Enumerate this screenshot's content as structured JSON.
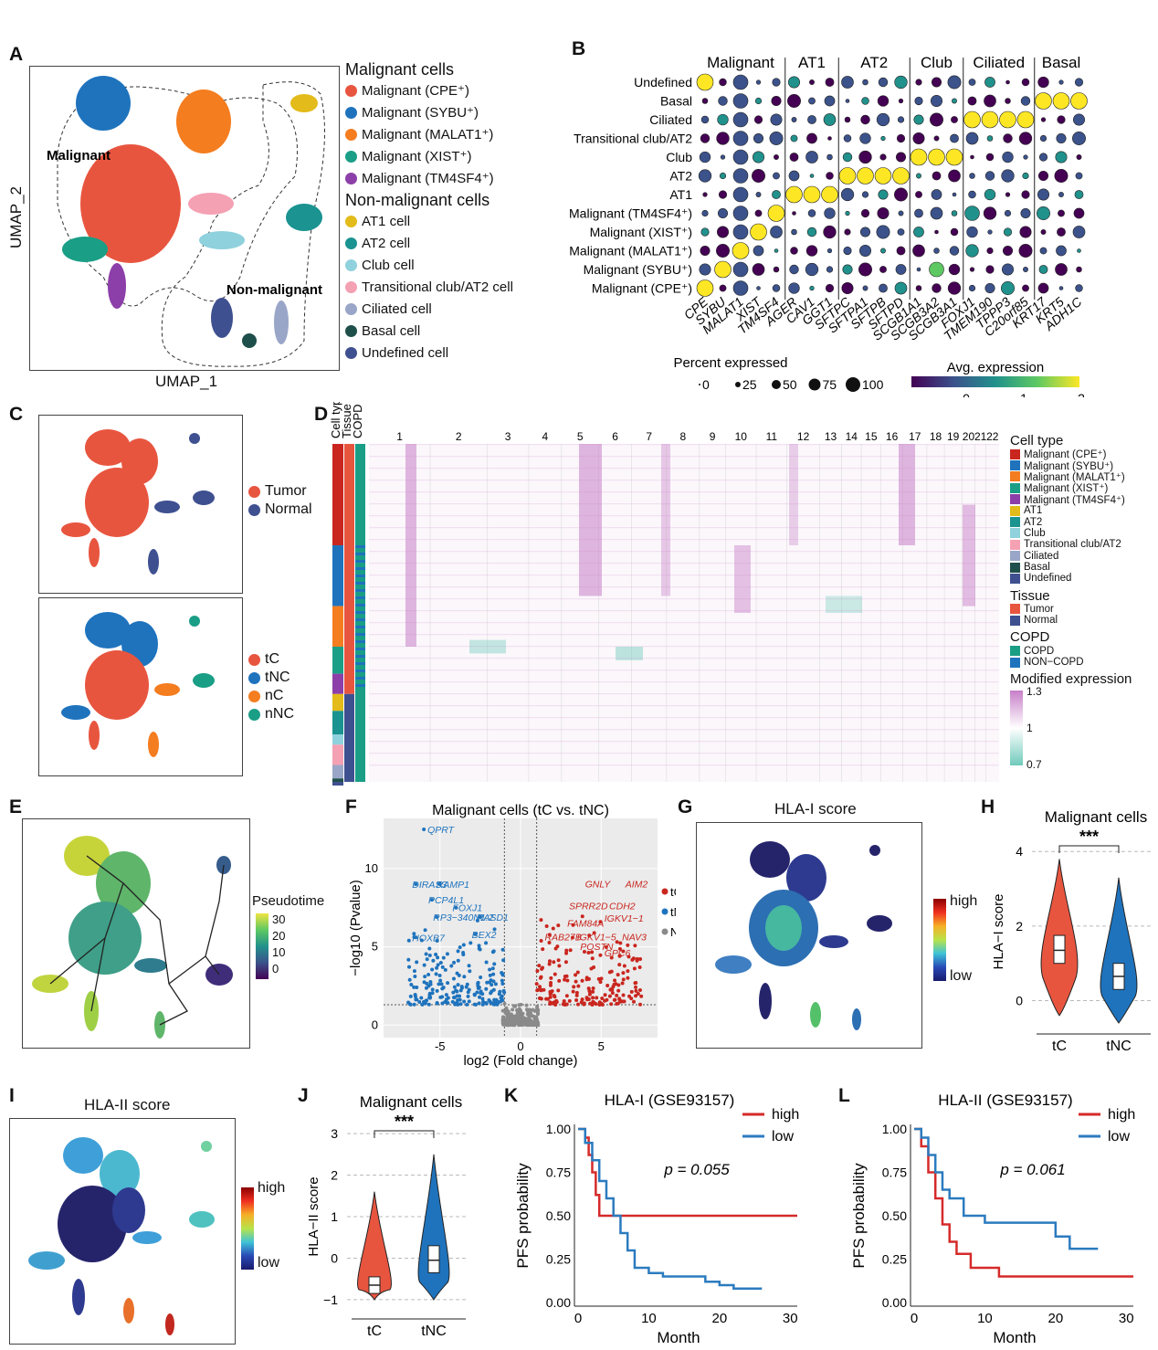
{
  "panels": {
    "A": {
      "label": "A",
      "xlabel": "UMAP_1",
      "ylabel": "UMAP_2",
      "region_malignant": "Malignant",
      "region_nonmalignant": "Non-malignant",
      "legend_malignant_title": "Malignant cells",
      "legend_nonmalignant_title": "Non-malignant cells",
      "legend": [
        {
          "label": "Malignant (CPE⁺)",
          "color": "#e8553f"
        },
        {
          "label": "Malignant (SYBU⁺)",
          "color": "#1f73bd"
        },
        {
          "label": "Malignant (MALAT1⁺)",
          "color": "#f47d20"
        },
        {
          "label": "Malignant (XIST⁺)",
          "color": "#1a9e86"
        },
        {
          "label": "Malignant (TM4SF4⁺)",
          "color": "#8c3fa8"
        },
        {
          "label": "AT1 cell",
          "color": "#e3bb1a"
        },
        {
          "label": "AT2 cell",
          "color": "#1a9391"
        },
        {
          "label": "Club cell",
          "color": "#8fd1dd"
        },
        {
          "label": "Transitional club/AT2 cell",
          "color": "#f4a1b3"
        },
        {
          "label": "Ciliated cell",
          "color": "#99a6c8"
        },
        {
          "label": "Basal cell",
          "color": "#1f4f4a"
        },
        {
          "label": "Undefined cell",
          "color": "#3f5090"
        }
      ]
    },
    "B": {
      "label": "B",
      "groups": [
        "Malignant",
        "AT1",
        "AT2",
        "Club",
        "Ciliated",
        "Basal"
      ],
      "rows": [
        "Undefined",
        "Basal",
        "Ciliated",
        "Transitional club/AT2",
        "Club",
        "AT2",
        "AT1",
        "Malignant (TM4SF4⁺)",
        "Malignant (XIST⁺)",
        "Malignant (MALAT1⁺)",
        "Malignant (SYBU⁺)",
        "Malignant (CPE⁺)"
      ],
      "genes": [
        "CPE",
        "SYBU",
        "MALAT1",
        "XIST",
        "TM4SF4",
        "AGER",
        "CAV1",
        "GGT1",
        "SFTPC",
        "SFTPA1",
        "SFTPB",
        "SFTPD",
        "SCGB1A1",
        "SCGB3A2",
        "SCGB3A1",
        "FOXJ1",
        "TMEM190",
        "TPPP3",
        "C20orf85",
        "KRT17",
        "KRT5",
        "ADH1C"
      ],
      "size_title": "Percent expressed",
      "size_labels": [
        "0",
        "25",
        "50",
        "75",
        "100"
      ],
      "color_title": "Avg. expression",
      "color_ticks": [
        "0",
        "1",
        "2"
      ]
    },
    "C": {
      "label": "C",
      "legend_top": [
        {
          "label": "Tumor",
          "color": "#e8553f"
        },
        {
          "label": "Normal",
          "color": "#3f5090"
        }
      ],
      "legend_bottom": [
        {
          "label": "tC",
          "color": "#e8553f"
        },
        {
          "label": "tNC",
          "color": "#1f73bd"
        },
        {
          "label": "nC",
          "color": "#f47d20"
        },
        {
          "label": "nNC",
          "color": "#1a9e86"
        }
      ]
    },
    "D": {
      "label": "D",
      "col_headers": [
        "Cell type",
        "Tissue",
        "COPD"
      ],
      "chromosomes": [
        "1",
        "2",
        "3",
        "4",
        "5",
        "6",
        "7",
        "8",
        "9",
        "10",
        "11",
        "12",
        "13",
        "14",
        "15",
        "16",
        "17",
        "18",
        "19",
        "20",
        "21",
        "22"
      ],
      "celltype_title": "Cell type",
      "celltype_legend": [
        {
          "label": "Malignant (CPE⁺)",
          "color": "#c9261f"
        },
        {
          "label": "Malignant (SYBU⁺)",
          "color": "#1f73bd"
        },
        {
          "label": "Malignant (MALAT1⁺)",
          "color": "#f47d20"
        },
        {
          "label": "Malignant (XIST⁺)",
          "color": "#1a9e86"
        },
        {
          "label": "Malignant (TM4SF4⁺)",
          "color": "#8c3fa8"
        },
        {
          "label": "AT1",
          "color": "#e3bb1a"
        },
        {
          "label": "AT2",
          "color": "#1a9391"
        },
        {
          "label": "Club",
          "color": "#8fd1dd"
        },
        {
          "label": "Transitional club/AT2",
          "color": "#f4a1b3"
        },
        {
          "label": "Ciliated",
          "color": "#99a6c8"
        },
        {
          "label": "Basal",
          "color": "#1f4f4a"
        },
        {
          "label": "Undefined",
          "color": "#3f5090"
        }
      ],
      "tissue_title": "Tissue",
      "tissue_legend": [
        {
          "label": "Tumor",
          "color": "#e8553f"
        },
        {
          "label": "Normal",
          "color": "#3f5090"
        }
      ],
      "copd_title": "COPD",
      "copd_legend": [
        {
          "label": "COPD",
          "color": "#1a9e86"
        },
        {
          "label": "NON−COPD",
          "color": "#1f73bd"
        }
      ],
      "expr_title": "Modified expression",
      "expr_ticks": [
        "1.3",
        "1",
        "0.7"
      ]
    },
    "E": {
      "label": "E",
      "legend_title": "Pseudotime",
      "ticks": [
        "30",
        "20",
        "10",
        "0"
      ]
    },
    "F": {
      "label": "F",
      "title": "Malignant cells (tC vs. tNC)",
      "ylabel": "−log10 (Pvalue)",
      "xlabel": "log2 (Fold change)",
      "x_ticks": [
        "-5",
        "0",
        "5"
      ],
      "y_ticks": [
        "0",
        "5",
        "10"
      ],
      "legend": [
        {
          "label": "tC",
          "color": "#c9261f"
        },
        {
          "label": "tNC",
          "color": "#1f73bd"
        },
        {
          "label": "Not",
          "color": "#8a8a8a"
        }
      ],
      "genes_blue": [
        "QPRT",
        "DIRAS3",
        "RAMP1",
        "PCP4L1",
        "FOXJ1",
        "RP3−340N1.2",
        "RASD1",
        "HOXB7",
        "BEX2"
      ],
      "genes_red": [
        "GNLY",
        "AIM2",
        "SPRR2D",
        "CDH2",
        "IGKV1−1",
        "FAM84A",
        "RAB27B",
        "IGKV1−5",
        "NAV3",
        "POSTN",
        "GPC6"
      ]
    },
    "G": {
      "label": "G",
      "title": "HLA-I score",
      "high": "high",
      "low": "low"
    },
    "H": {
      "label": "H",
      "title": "Malignant cells",
      "ylabel": "HLA−I score",
      "y_ticks": [
        "0",
        "2",
        "4"
      ],
      "groups": [
        "tC",
        "tNC"
      ],
      "sig": "***"
    },
    "I": {
      "label": "I",
      "title": "HLA-II score",
      "high": "high",
      "low": "low"
    },
    "J": {
      "label": "J",
      "title": "Malignant cells",
      "ylabel": "HLA−II score",
      "y_ticks": [
        "−1",
        "0",
        "1",
        "2",
        "3"
      ],
      "groups": [
        "tC",
        "tNC"
      ],
      "sig": "***"
    },
    "K": {
      "label": "K",
      "title": "HLA-I (GSE93157)",
      "ylabel": "PFS probability",
      "xlabel": "Month",
      "pvalue": "p = 0.055",
      "y_ticks": [
        "0.00",
        "0.25",
        "0.50",
        "0.75",
        "1.00"
      ],
      "x_ticks": [
        "0",
        "10",
        "20",
        "30"
      ],
      "legend": [
        {
          "label": "high",
          "color": "#d62a2a"
        },
        {
          "label": "low",
          "color": "#2b7bbf"
        }
      ]
    },
    "L": {
      "label": "L",
      "title": "HLA-II (GSE93157)",
      "ylabel": "PFS probability",
      "xlabel": "Month",
      "pvalue": "p = 0.061",
      "y_ticks": [
        "0.00",
        "0.25",
        "0.50",
        "0.75",
        "1.00"
      ],
      "x_ticks": [
        "0",
        "10",
        "20",
        "30"
      ],
      "legend": [
        {
          "label": "high",
          "color": "#d62a2a"
        },
        {
          "label": "low",
          "color": "#2b7bbf"
        }
      ]
    }
  },
  "chart_data": [
    {
      "type": "line",
      "panel": "K",
      "title": "HLA-I (GSE93157)",
      "xlabel": "Month",
      "ylabel": "PFS probability",
      "xlim": [
        0,
        31
      ],
      "ylim": [
        0,
        1
      ],
      "series": [
        {
          "name": "high",
          "x": [
            0,
            1,
            1.5,
            2,
            2.5,
            3,
            31
          ],
          "y": [
            1.0,
            0.95,
            0.85,
            0.75,
            0.62,
            0.5,
            0.5
          ]
        },
        {
          "name": "low",
          "x": [
            0,
            1,
            2,
            3,
            4,
            5,
            6,
            7,
            8,
            10,
            12,
            15,
            18,
            20,
            22,
            26
          ],
          "y": [
            1.0,
            0.92,
            0.82,
            0.7,
            0.6,
            0.5,
            0.4,
            0.3,
            0.2,
            0.17,
            0.15,
            0.15,
            0.12,
            0.1,
            0.08,
            0.08
          ]
        }
      ],
      "pvalue": "p = 0.055"
    },
    {
      "type": "line",
      "panel": "L",
      "title": "HLA-II (GSE93157)",
      "xlabel": "Month",
      "ylabel": "PFS probability",
      "xlim": [
        0,
        31
      ],
      "ylim": [
        0,
        1
      ],
      "series": [
        {
          "name": "high",
          "x": [
            0,
            1,
            2,
            3,
            4,
            5,
            6,
            8,
            12,
            15,
            20,
            31
          ],
          "y": [
            1.0,
            0.9,
            0.75,
            0.6,
            0.45,
            0.35,
            0.28,
            0.2,
            0.15,
            0.15,
            0.15,
            0.15
          ]
        },
        {
          "name": "low",
          "x": [
            0,
            1,
            2,
            3,
            4,
            5,
            7,
            10,
            15,
            20,
            22,
            26
          ],
          "y": [
            1.0,
            0.95,
            0.85,
            0.75,
            0.65,
            0.6,
            0.5,
            0.46,
            0.46,
            0.38,
            0.31,
            0.31
          ]
        }
      ],
      "pvalue": "p = 0.061"
    }
  ]
}
